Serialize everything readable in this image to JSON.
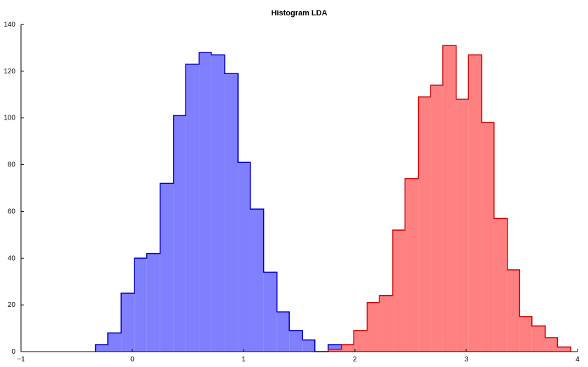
{
  "chart_data": {
    "type": "bar",
    "title": "Histogram LDA",
    "xlabel": "",
    "ylabel": "",
    "xlim": [
      -1,
      4
    ],
    "ylim": [
      0,
      140
    ],
    "xticks": [
      -1,
      0,
      1,
      2,
      3,
      4
    ],
    "yticks": [
      0,
      20,
      40,
      60,
      80,
      100,
      120,
      140
    ],
    "xtick_labels": [
      "−1",
      "0",
      "1",
      "2",
      "3",
      "4"
    ],
    "ytick_labels": [
      "0",
      "20",
      "40",
      "60",
      "80",
      "100",
      "120",
      "140"
    ],
    "grid": false,
    "series": [
      {
        "color": "#0000cc",
        "fill": "#8080ff",
        "edges": [
          -0.33,
          -0.22,
          -0.1,
          0.02,
          0.13,
          0.25,
          0.37,
          0.48,
          0.6,
          0.71,
          0.83,
          0.95,
          1.06,
          1.18,
          1.3,
          1.41,
          1.53,
          1.64,
          1.76,
          1.88
        ],
        "counts": [
          3,
          8,
          25,
          40,
          42,
          72,
          101,
          123,
          128,
          127,
          119,
          81,
          61,
          34,
          17,
          9,
          5,
          0,
          3
        ]
      },
      {
        "color": "#cc0000",
        "fill": "#ff8080",
        "edges": [
          1.76,
          1.88,
          1.99,
          2.11,
          2.22,
          2.34,
          2.45,
          2.57,
          2.68,
          2.79,
          2.91,
          3.02,
          3.14,
          3.25,
          3.37,
          3.48,
          3.59,
          3.71,
          3.82,
          3.94
        ],
        "counts": [
          1,
          3,
          9,
          21,
          24,
          52,
          74,
          109,
          114,
          131,
          108,
          127,
          98,
          57,
          35,
          15,
          11,
          6,
          2
        ]
      }
    ]
  }
}
